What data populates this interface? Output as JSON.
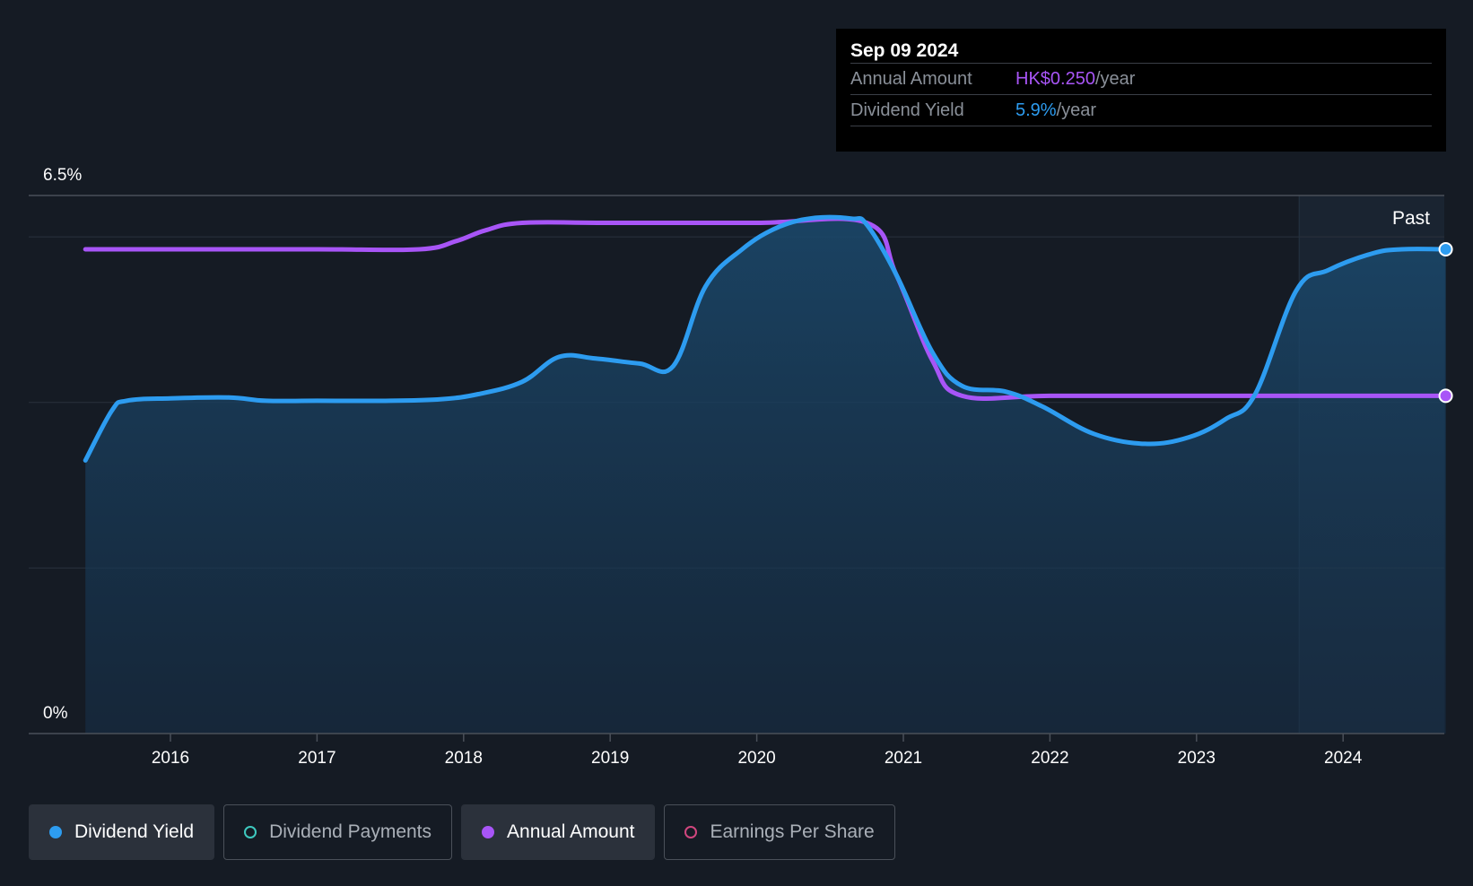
{
  "tooltip": {
    "date": "Sep 09 2024",
    "rows": [
      {
        "label": "Annual Amount",
        "value": "HK$0.250",
        "unit": "/year",
        "color": "#a855f7"
      },
      {
        "label": "Dividend Yield",
        "value": "5.9%",
        "unit": "/year",
        "color": "#2d9cf0"
      }
    ]
  },
  "past_label": "Past",
  "legend": [
    {
      "label": "Dividend Yield",
      "color": "#2d9cf0",
      "active": true,
      "filled": true
    },
    {
      "label": "Dividend Payments",
      "color": "#3ec9bf",
      "active": false,
      "filled": false
    },
    {
      "label": "Annual Amount",
      "color": "#a855f7",
      "active": true,
      "filled": true
    },
    {
      "label": "Earnings Per Share",
      "color": "#d0467e",
      "active": false,
      "filled": false
    }
  ],
  "chart_data": {
    "type": "line",
    "x_ticks": [
      "2016",
      "2017",
      "2018",
      "2019",
      "2020",
      "2021",
      "2022",
      "2023",
      "2024"
    ],
    "y_tick_labels": [
      "0%",
      "6.5%"
    ],
    "ylim": [
      0,
      6.5
    ],
    "xlim": [
      2015.42,
      2024.7
    ],
    "past_start": 2023.7,
    "grid": true,
    "series": [
      {
        "name": "Dividend Yield",
        "color": "#2d9cf0",
        "unit": "%",
        "points": [
          [
            2015.42,
            3.3
          ],
          [
            2015.6,
            3.9
          ],
          [
            2015.7,
            4.02
          ],
          [
            2016.0,
            4.05
          ],
          [
            2016.4,
            4.06
          ],
          [
            2016.65,
            4.02
          ],
          [
            2017.0,
            4.02
          ],
          [
            2017.5,
            4.02
          ],
          [
            2017.85,
            4.04
          ],
          [
            2018.1,
            4.1
          ],
          [
            2018.4,
            4.25
          ],
          [
            2018.65,
            4.55
          ],
          [
            2018.9,
            4.53
          ],
          [
            2019.2,
            4.47
          ],
          [
            2019.43,
            4.44
          ],
          [
            2019.65,
            5.4
          ],
          [
            2019.9,
            5.85
          ],
          [
            2020.15,
            6.12
          ],
          [
            2020.4,
            6.23
          ],
          [
            2020.65,
            6.22
          ],
          [
            2020.75,
            6.15
          ],
          [
            2020.95,
            5.55
          ],
          [
            2021.2,
            4.6
          ],
          [
            2021.4,
            4.2
          ],
          [
            2021.7,
            4.13
          ],
          [
            2021.95,
            3.95
          ],
          [
            2022.3,
            3.62
          ],
          [
            2022.65,
            3.5
          ],
          [
            2022.95,
            3.58
          ],
          [
            2023.2,
            3.8
          ],
          [
            2023.4,
            4.1
          ],
          [
            2023.68,
            5.35
          ],
          [
            2023.9,
            5.6
          ],
          [
            2024.2,
            5.8
          ],
          [
            2024.4,
            5.85
          ],
          [
            2024.7,
            5.85
          ]
        ]
      },
      {
        "name": "Annual Amount",
        "color": "#a855f7",
        "unit": "HK$",
        "points": [
          [
            2015.42,
            5.85
          ],
          [
            2016.0,
            5.85
          ],
          [
            2017.0,
            5.85
          ],
          [
            2017.7,
            5.85
          ],
          [
            2017.95,
            5.95
          ],
          [
            2018.15,
            6.08
          ],
          [
            2018.4,
            6.17
          ],
          [
            2019.0,
            6.17
          ],
          [
            2020.0,
            6.17
          ],
          [
            2020.75,
            6.17
          ],
          [
            2020.95,
            5.55
          ],
          [
            2021.2,
            4.5
          ],
          [
            2021.4,
            4.08
          ],
          [
            2022.0,
            4.08
          ],
          [
            2023.0,
            4.08
          ],
          [
            2024.0,
            4.08
          ],
          [
            2024.7,
            4.08
          ]
        ]
      }
    ]
  }
}
